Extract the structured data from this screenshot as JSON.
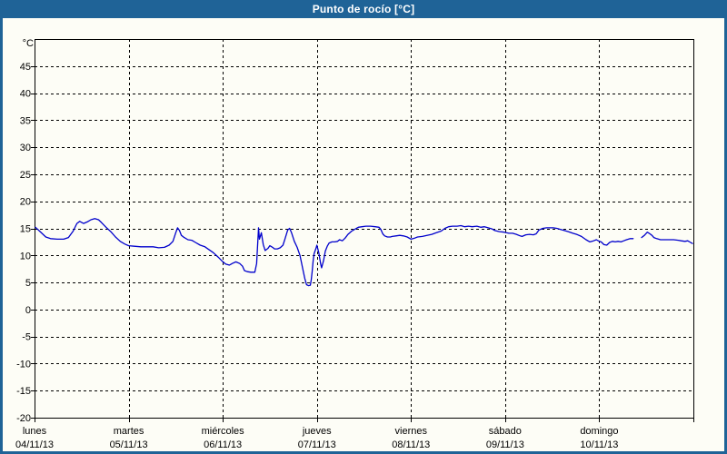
{
  "window": {
    "title": "Punto de rocío [°C]"
  },
  "colors": {
    "frame": "#1f6397",
    "titlebar_bg": "#1f6397",
    "title_text": "#ffffff",
    "content_bg": "#fdfdf6",
    "plot_border": "#000000",
    "grid": "#000000",
    "axis_text": "#000000",
    "line": "#0000cc"
  },
  "chart_data": {
    "type": "line",
    "title": "Punto de rocío [°C]",
    "ylabel": "°C",
    "unit_label": "°C",
    "ylim": [
      -20,
      50
    ],
    "yticks": [
      45,
      40,
      35,
      30,
      25,
      20,
      15,
      10,
      5,
      0,
      -5,
      -10,
      -15,
      -20
    ],
    "grid": "dashed",
    "legend": "none",
    "xlim_days": [
      0,
      7
    ],
    "x_axis_days": [
      {
        "name": "lunes",
        "date": "04/11/13"
      },
      {
        "name": "martes",
        "date": "05/11/13"
      },
      {
        "name": "miércoles",
        "date": "06/11/13"
      },
      {
        "name": "jueves",
        "date": "07/11/13"
      },
      {
        "name": "viernes",
        "date": "08/11/13"
      },
      {
        "name": "sábado",
        "date": "09/11/13"
      },
      {
        "name": "domingo",
        "date": "10/11/13"
      }
    ],
    "series": [
      {
        "name": "Punto de rocío",
        "color": "#0000cc",
        "segments": [
          [
            [
              0.01,
              15.2
            ],
            [
              0.06,
              14.4
            ],
            [
              0.12,
              13.4
            ],
            [
              0.17,
              13.1
            ],
            [
              0.24,
              13.0
            ],
            [
              0.31,
              13.0
            ],
            [
              0.36,
              13.3
            ],
            [
              0.41,
              14.5
            ],
            [
              0.45,
              15.9
            ],
            [
              0.48,
              16.3
            ],
            [
              0.52,
              15.9
            ],
            [
              0.56,
              16.2
            ],
            [
              0.6,
              16.6
            ],
            [
              0.64,
              16.8
            ],
            [
              0.68,
              16.6
            ],
            [
              0.71,
              16.1
            ],
            [
              0.76,
              15.2
            ],
            [
              0.81,
              14.4
            ],
            [
              0.86,
              13.4
            ],
            [
              0.91,
              12.6
            ],
            [
              0.96,
              12.1
            ],
            [
              1.0,
              11.8
            ],
            [
              1.06,
              11.7
            ],
            [
              1.13,
              11.6
            ],
            [
              1.2,
              11.6
            ],
            [
              1.26,
              11.6
            ],
            [
              1.32,
              11.4
            ],
            [
              1.38,
              11.5
            ],
            [
              1.43,
              11.9
            ],
            [
              1.47,
              12.6
            ],
            [
              1.5,
              14.2
            ],
            [
              1.52,
              15.1
            ],
            [
              1.54,
              14.6
            ],
            [
              1.56,
              13.7
            ],
            [
              1.59,
              13.3
            ],
            [
              1.63,
              12.9
            ],
            [
              1.67,
              12.8
            ],
            [
              1.71,
              12.4
            ],
            [
              1.76,
              11.9
            ],
            [
              1.81,
              11.6
            ],
            [
              1.85,
              11.1
            ],
            [
              1.9,
              10.5
            ],
            [
              1.95,
              9.7
            ],
            [
              1.99,
              9.0
            ],
            [
              2.03,
              8.4
            ],
            [
              2.07,
              8.2
            ],
            [
              2.1,
              8.5
            ],
            [
              2.14,
              8.8
            ],
            [
              2.18,
              8.5
            ],
            [
              2.21,
              8.0
            ],
            [
              2.23,
              7.2
            ],
            [
              2.26,
              7.0
            ],
            [
              2.3,
              6.9
            ],
            [
              2.34,
              6.9
            ],
            [
              2.36,
              8.5
            ],
            [
              2.38,
              15.1
            ],
            [
              2.39,
              13.0
            ],
            [
              2.41,
              14.2
            ],
            [
              2.43,
              12.0
            ],
            [
              2.45,
              10.9
            ],
            [
              2.48,
              11.3
            ],
            [
              2.5,
              11.8
            ],
            [
              2.53,
              11.5
            ],
            [
              2.55,
              11.2
            ],
            [
              2.58,
              11.2
            ],
            [
              2.61,
              11.4
            ],
            [
              2.64,
              11.9
            ],
            [
              2.66,
              13.0
            ],
            [
              2.69,
              14.7
            ],
            [
              2.71,
              15.0
            ],
            [
              2.73,
              14.2
            ],
            [
              2.76,
              12.6
            ],
            [
              2.79,
              11.5
            ],
            [
              2.82,
              10.0
            ],
            [
              2.85,
              7.5
            ],
            [
              2.87,
              5.8
            ],
            [
              2.89,
              4.6
            ],
            [
              2.91,
              4.4
            ],
            [
              2.93,
              4.5
            ],
            [
              2.94,
              5.5
            ],
            [
              2.95,
              7.0
            ],
            [
              2.96,
              9.0
            ],
            [
              2.97,
              10.3
            ],
            [
              2.99,
              11.3
            ],
            [
              3.0,
              11.9
            ],
            [
              3.02,
              10.5
            ],
            [
              3.04,
              8.4
            ],
            [
              3.05,
              7.7
            ],
            [
              3.07,
              9.0
            ],
            [
              3.09,
              10.8
            ],
            [
              3.11,
              11.7
            ],
            [
              3.13,
              12.3
            ],
            [
              3.16,
              12.5
            ],
            [
              3.19,
              12.5
            ],
            [
              3.22,
              12.6
            ],
            [
              3.24,
              12.9
            ],
            [
              3.27,
              12.7
            ],
            [
              3.3,
              13.2
            ],
            [
              3.33,
              13.9
            ],
            [
              3.37,
              14.5
            ],
            [
              3.4,
              14.8
            ],
            [
              3.44,
              15.2
            ],
            [
              3.48,
              15.3
            ],
            [
              3.52,
              15.4
            ],
            [
              3.57,
              15.4
            ],
            [
              3.62,
              15.3
            ],
            [
              3.66,
              15.2
            ],
            [
              3.68,
              14.8
            ],
            [
              3.7,
              14.0
            ],
            [
              3.72,
              13.6
            ],
            [
              3.75,
              13.4
            ],
            [
              3.78,
              13.4
            ],
            [
              3.8,
              13.5
            ],
            [
              3.84,
              13.6
            ],
            [
              3.88,
              13.7
            ],
            [
              3.92,
              13.6
            ],
            [
              3.96,
              13.4
            ],
            [
              4.0,
              13.0
            ],
            [
              4.04,
              13.2
            ],
            [
              4.07,
              13.4
            ],
            [
              4.12,
              13.5
            ],
            [
              4.17,
              13.7
            ],
            [
              4.22,
              13.9
            ],
            [
              4.27,
              14.2
            ],
            [
              4.32,
              14.5
            ],
            [
              4.36,
              15.0
            ],
            [
              4.4,
              15.3
            ],
            [
              4.44,
              15.4
            ],
            [
              4.49,
              15.4
            ],
            [
              4.53,
              15.5
            ],
            [
              4.57,
              15.3
            ],
            [
              4.61,
              15.4
            ],
            [
              4.65,
              15.3
            ],
            [
              4.7,
              15.4
            ],
            [
              4.74,
              15.2
            ],
            [
              4.78,
              15.3
            ],
            [
              4.82,
              15.1
            ],
            [
              4.86,
              14.9
            ],
            [
              4.89,
              14.6
            ],
            [
              4.94,
              14.4
            ],
            [
              4.99,
              14.3
            ],
            [
              5.04,
              14.1
            ],
            [
              5.08,
              14.1
            ],
            [
              5.12,
              13.9
            ],
            [
              5.16,
              13.6
            ],
            [
              5.18,
              13.5
            ],
            [
              5.22,
              13.8
            ],
            [
              5.26,
              13.9
            ],
            [
              5.3,
              13.8
            ],
            [
              5.33,
              14.0
            ],
            [
              5.36,
              14.7
            ],
            [
              5.4,
              15.0
            ],
            [
              5.44,
              15.1
            ],
            [
              5.47,
              15.1
            ],
            [
              5.51,
              15.1
            ],
            [
              5.55,
              15.0
            ],
            [
              5.59,
              14.8
            ],
            [
              5.63,
              14.6
            ],
            [
              5.67,
              14.4
            ],
            [
              5.72,
              14.1
            ],
            [
              5.76,
              13.9
            ],
            [
              5.81,
              13.5
            ],
            [
              5.86,
              12.9
            ],
            [
              5.9,
              12.5
            ],
            [
              5.94,
              12.7
            ],
            [
              5.97,
              12.9
            ],
            [
              6.0,
              12.6
            ],
            [
              6.02,
              12.5
            ],
            [
              6.05,
              12.0
            ],
            [
              6.08,
              11.9
            ],
            [
              6.11,
              12.4
            ],
            [
              6.14,
              12.6
            ],
            [
              6.17,
              12.5
            ],
            [
              6.2,
              12.6
            ],
            [
              6.23,
              12.5
            ],
            [
              6.26,
              12.7
            ],
            [
              6.29,
              12.9
            ],
            [
              6.33,
              13.1
            ],
            [
              6.36,
              13.1
            ]
          ],
          [
            [
              6.45,
              13.3
            ],
            [
              6.48,
              13.7
            ],
            [
              6.51,
              14.3
            ],
            [
              6.53,
              14.1
            ],
            [
              6.56,
              13.7
            ],
            [
              6.58,
              13.3
            ],
            [
              6.61,
              13.1
            ],
            [
              6.65,
              12.9
            ],
            [
              6.69,
              12.9
            ],
            [
              6.74,
              12.9
            ],
            [
              6.79,
              12.9
            ],
            [
              6.84,
              12.8
            ],
            [
              6.87,
              12.7
            ],
            [
              6.91,
              12.6
            ],
            [
              6.94,
              12.7
            ],
            [
              6.97,
              12.4
            ],
            [
              6.99,
              12.2
            ]
          ]
        ]
      }
    ]
  }
}
